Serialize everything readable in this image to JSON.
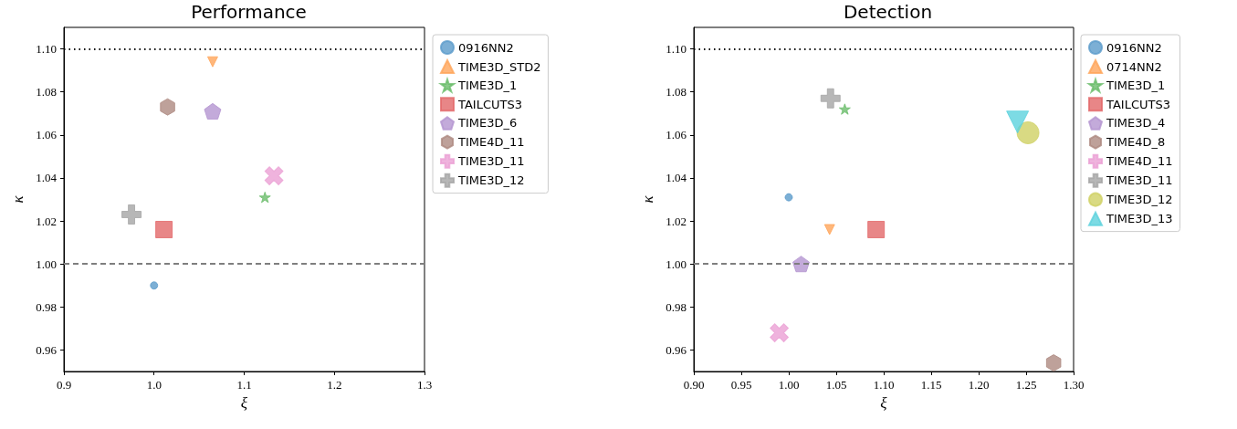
{
  "chart_data": [
    {
      "type": "scatter",
      "title": "Performance",
      "xlabel": "ξ",
      "ylabel": "κ",
      "xlim": [
        0.9,
        1.3
      ],
      "xticks": [
        0.9,
        {
          "value": 1.0,
          "label": "1.0"
        },
        1.1,
        1.2,
        1.3
      ],
      "ylim": [
        0.95,
        1.11
      ],
      "yticks": [
        {
          "value": 0.96,
          "label": "0.96"
        },
        {
          "value": 0.98,
          "label": "0.98"
        },
        {
          "value": 1.0,
          "label": "1.00"
        },
        {
          "value": 1.02,
          "label": "1.02"
        },
        {
          "value": 1.04,
          "label": "1.04"
        },
        {
          "value": 1.06,
          "label": "1.06"
        },
        {
          "value": 1.08,
          "label": "1.08"
        },
        {
          "value": 1.1,
          "label": "1.10"
        }
      ],
      "grid": false,
      "legend": "right",
      "ref_lines": [
        {
          "axis": "y",
          "value": 1.1,
          "color": "#000000",
          "line_style": "dotted"
        },
        {
          "axis": "y",
          "value": 1.0,
          "color": "#7f7f7f",
          "line_style": "dashed"
        }
      ],
      "series": [
        {
          "name": "0916NN2",
          "color": "#5b9bcb",
          "marker": "circle",
          "x": [
            1.0
          ],
          "values": [
            0.99
          ]
        },
        {
          "name": "TIME3D_STD2",
          "color": "#ffa55a",
          "marker": "triangle_down",
          "x": [
            1.065
          ],
          "values": [
            1.094
          ]
        },
        {
          "name": "TIME3D_1",
          "color": "#6bbd6b",
          "marker": "star",
          "x": [
            1.123
          ],
          "values": [
            1.031
          ]
        },
        {
          "name": "TAILCUTS3",
          "color": "#e26869",
          "marker": "square",
          "x": [
            1.011
          ],
          "values": [
            1.016
          ]
        },
        {
          "name": "TIME3D_6",
          "color": "#b495d1",
          "x": [
            1.065
          ],
          "values": [
            1.071
          ]
        },
        {
          "name": "TIME4D_11",
          "color": "#ae8981",
          "x": [
            1.015
          ],
          "values": [
            1.073
          ]
        },
        {
          "name": "TIME3D_11",
          "color": "#eba0d4",
          "marker": "x",
          "x": [
            1.133
          ],
          "values": [
            1.041
          ]
        },
        {
          "name": "TIME3D_12",
          "color": "#a5a5a5",
          "marker": "plus",
          "x": [
            0.975
          ],
          "values": [
            1.023
          ]
        }
      ]
    },
    {
      "type": "scatter",
      "title": "Detection",
      "xlabel": "ξ",
      "ylabel": "κ",
      "xlim": [
        0.9,
        1.3
      ],
      "xticks": [
        {
          "value": 0.9,
          "label": "0.90"
        },
        {
          "value": 0.95,
          "label": "0.95"
        },
        {
          "value": 1.0,
          "label": "1.00"
        },
        {
          "value": 1.05,
          "label": "1.05"
        },
        {
          "value": 1.1,
          "label": "1.10"
        },
        {
          "value": 1.15,
          "label": "1.15"
        },
        {
          "value": 1.2,
          "label": "1.20"
        },
        {
          "value": 1.25,
          "label": "1.25"
        },
        {
          "value": 1.3,
          "label": "1.30"
        }
      ],
      "ylim": [
        0.95,
        1.11
      ],
      "yticks": [
        {
          "value": 0.96,
          "label": "0.96"
        },
        {
          "value": 0.98,
          "label": "0.98"
        },
        {
          "value": 1.0,
          "label": "1.00"
        },
        {
          "value": 1.02,
          "label": "1.02"
        },
        {
          "value": 1.04,
          "label": "1.04"
        },
        {
          "value": 1.06,
          "label": "1.06"
        },
        {
          "value": 1.08,
          "label": "1.08"
        },
        {
          "value": 1.1,
          "label": "1.10"
        }
      ],
      "grid": false,
      "legend": "right",
      "ref_lines": [
        {
          "axis": "y",
          "value": 1.1,
          "color": "#000000",
          "line_style": "dotted"
        },
        {
          "axis": "y",
          "value": 1.0,
          "color": "#7f7f7f",
          "line_style": "dashed"
        }
      ],
      "series": [
        {
          "name": "0916NN2",
          "color": "#5b9bcb",
          "marker": "circle",
          "x": [
            1.0
          ],
          "values": [
            1.031
          ]
        },
        {
          "name": "0714NN2",
          "color": "#ffa55a",
          "marker": "triangle_down",
          "x": [
            1.043
          ],
          "values": [
            1.016
          ]
        },
        {
          "name": "TIME3D_1",
          "color": "#6bbd6b",
          "marker": "star",
          "x": [
            1.059
          ],
          "values": [
            1.072
          ]
        },
        {
          "name": "TAILCUTS3",
          "color": "#e26869",
          "marker": "square",
          "x": [
            1.092
          ],
          "values": [
            1.016
          ]
        },
        {
          "name": "TIME3D_4",
          "color": "#b495d1",
          "x": [
            1.013
          ],
          "values": [
            1.0
          ]
        },
        {
          "name": "TIME4D_8",
          "color": "#ae8981",
          "x": [
            1.279
          ],
          "values": [
            0.954
          ]
        },
        {
          "name": "TIME4D_11",
          "color": "#eba0d4",
          "marker": "x",
          "x": [
            0.99
          ],
          "values": [
            0.968
          ]
        },
        {
          "name": "TIME3D_11",
          "color": "#a5a5a5",
          "marker": "plus",
          "x": [
            1.044
          ],
          "values": [
            1.077
          ]
        },
        {
          "name": "TIME3D_12",
          "color": "#d0d164",
          "marker": "circle",
          "x": [
            1.252
          ],
          "values": [
            1.061
          ]
        },
        {
          "name": "TIME3D_13",
          "color": "#5dd2dd",
          "marker": "triangle_down",
          "x": [
            1.241
          ],
          "values": [
            1.066
          ]
        }
      ]
    }
  ]
}
